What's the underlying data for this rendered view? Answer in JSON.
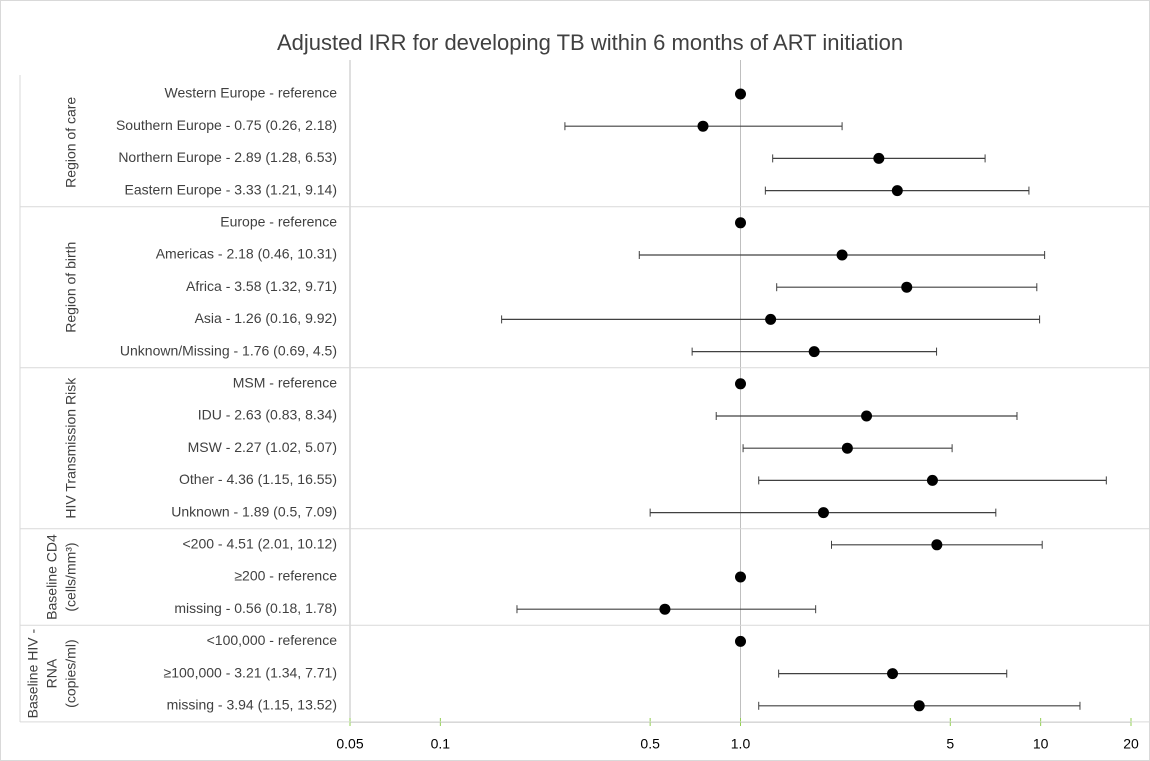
{
  "chart_data": {
    "type": "forest",
    "title": "Adjusted IRR for developing TB within 6 months of ART initiation",
    "xlim": [
      0.05,
      20
    ],
    "log_x": true,
    "xticks": [
      0.05,
      0.1,
      0.5,
      {
        "value": 1,
        "label": "1.0"
      },
      5,
      10,
      20
    ],
    "vline": 1,
    "point_color": "#000000",
    "bar_color": "#404040",
    "tick_color": "#92d050",
    "groups": [
      {
        "name": [
          "Region of care"
        ],
        "categories": [
          "Western Europe - reference",
          "Southern Europe - 0.75 (0.26, 2.18)",
          "Northern Europe - 2.89 (1.28, 6.53)",
          "Eastern Europe - 3.33 (1.21, 9.14)"
        ],
        "values": [
          1,
          0.75,
          2.89,
          3.33
        ],
        "lower": [
          null,
          0.26,
          1.28,
          1.21
        ],
        "upper": [
          null,
          2.18,
          6.53,
          9.14
        ]
      },
      {
        "name": [
          "Region of birth"
        ],
        "categories": [
          "Europe - reference",
          "Americas - 2.18 (0.46, 10.31)",
          "Africa - 3.58 (1.32, 9.71)",
          "Asia - 1.26 (0.16, 9.92)",
          "Unknown/Missing - 1.76 (0.69, 4.5)"
        ],
        "values": [
          1,
          2.18,
          3.58,
          1.26,
          1.76
        ],
        "lower": [
          null,
          0.46,
          1.32,
          0.16,
          0.69
        ],
        "upper": [
          null,
          10.31,
          9.71,
          9.92,
          4.5
        ]
      },
      {
        "name": [
          "HIV Transmission Risk"
        ],
        "categories": [
          "MSM - reference",
          "IDU - 2.63 (0.83, 8.34)",
          "MSW - 2.27 (1.02, 5.07)",
          "Other - 4.36 (1.15, 16.55)",
          "Unknown - 1.89 (0.5, 7.09)"
        ],
        "values": [
          1,
          2.63,
          2.27,
          4.36,
          1.89
        ],
        "lower": [
          null,
          0.83,
          1.02,
          1.15,
          0.5
        ],
        "upper": [
          null,
          8.34,
          5.07,
          16.55,
          7.09
        ]
      },
      {
        "name": [
          "Baseline CD4",
          "(cells/mm³)"
        ],
        "categories": [
          "<200 - 4.51 (2.01, 10.12)",
          "≥200  - reference",
          "missing - 0.56 (0.18, 1.78)"
        ],
        "values": [
          4.51,
          1,
          0.56
        ],
        "lower": [
          2.01,
          null,
          0.18
        ],
        "upper": [
          10.12,
          null,
          1.78
        ]
      },
      {
        "name": [
          "Baseline HIV -",
          "RNA",
          "(copies/ml)"
        ],
        "categories": [
          "<100,000 - reference",
          "≥100,000 - 3.21 (1.34, 7.71)",
          "missing - 3.94 (1.15, 13.52)"
        ],
        "values": [
          1,
          3.21,
          3.94
        ],
        "lower": [
          null,
          1.34,
          1.15
        ],
        "upper": [
          null,
          7.71,
          13.52
        ]
      }
    ]
  }
}
